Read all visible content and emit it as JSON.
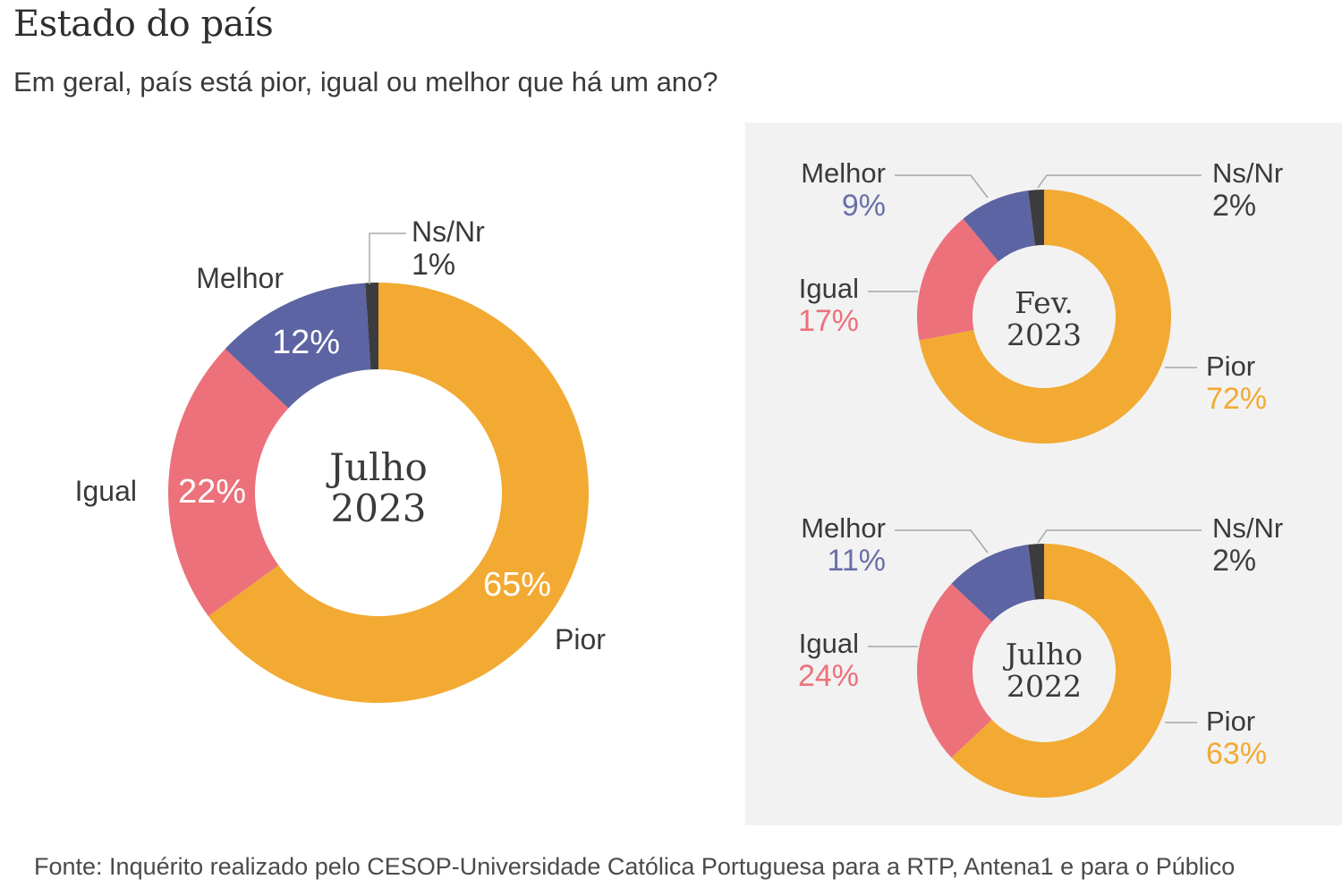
{
  "title": "Estado do país",
  "subtitle": "Em geral, país está pior, igual ou melhor que há um ano?",
  "footer": "Fonte: Inquérito realizado pelo CESOP-Universidade Católica Portuguesa para a RTP, Antena1 e para o Público",
  "colors": {
    "Pior": "#f2aa33",
    "Igual": "#ec717a",
    "Melhor": "#5c64a3",
    "Ns/Nr": "#3c3c3e",
    "Pior_label": "#f2aa33",
    "Igual_label": "#ec717a",
    "Melhor_label": "#6a70a8",
    "Ns/Nr_label": "#3f3f3f"
  },
  "chart_data": [
    {
      "type": "pie",
      "variant": "donut",
      "title": "Julho 2023",
      "center_label": [
        "Julho",
        "2023"
      ],
      "categories": [
        "Pior",
        "Igual",
        "Melhor",
        "Ns/Nr"
      ],
      "values": [
        65,
        22,
        12,
        1
      ],
      "labels": [
        "65%",
        "22%",
        "12%",
        "1%"
      ]
    },
    {
      "type": "pie",
      "variant": "donut",
      "title": "Fev. 2023",
      "center_label": [
        "Fev.",
        "2023"
      ],
      "categories": [
        "Pior",
        "Igual",
        "Melhor",
        "Ns/Nr"
      ],
      "values": [
        72,
        17,
        9,
        2
      ],
      "labels": [
        "72%",
        "17%",
        "9%",
        "2%"
      ]
    },
    {
      "type": "pie",
      "variant": "donut",
      "title": "Julho 2022",
      "center_label": [
        "Julho",
        "2022"
      ],
      "categories": [
        "Pior",
        "Igual",
        "Melhor",
        "Ns/Nr"
      ],
      "values": [
        63,
        24,
        11,
        2
      ],
      "labels": [
        "63%",
        "24%",
        "11%",
        "2%"
      ]
    }
  ]
}
